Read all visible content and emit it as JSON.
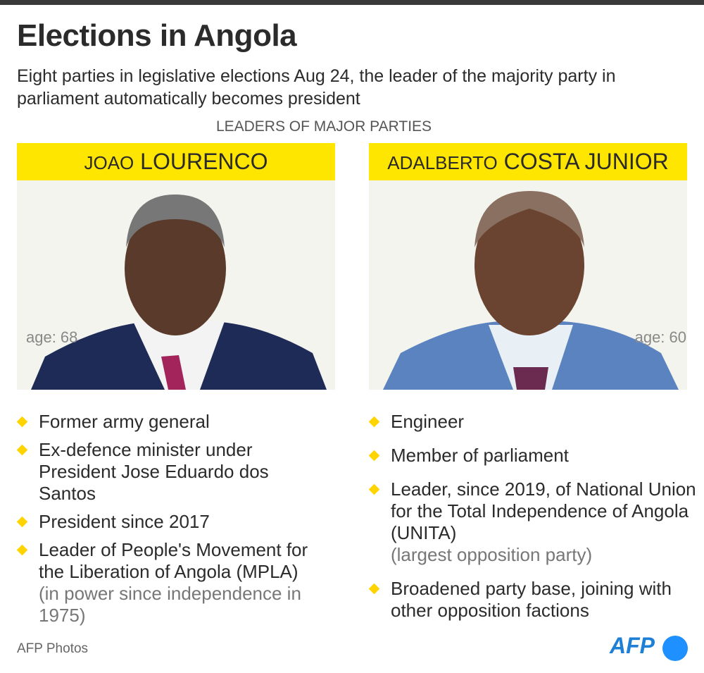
{
  "header": {
    "title": "Elections in Angola",
    "subtitle": "Eight parties in legislative elections Aug 24, the leader of the majority party in parliament automatically becomes president",
    "section_label": "LEADERS OF MAJOR PARTIES"
  },
  "leaders": [
    {
      "first_name": "JOAO",
      "last_name": "LOURENCO",
      "age_label": "age: 68",
      "bullets": [
        {
          "text": "Former army general"
        },
        {
          "text": "Ex-defence minister under President Jose Eduardo dos Santos"
        },
        {
          "text": "President since 2017"
        },
        {
          "text": "Leader of People's Movement for the Liberation of Angola (MPLA)",
          "note": "(in power since independence in 1975)"
        }
      ]
    },
    {
      "first_name": "ADALBERTO",
      "last_name": "COSTA JUNIOR",
      "age_label": "age: 60",
      "bullets": [
        {
          "text": "Engineer"
        },
        {
          "text": "Member of parliament"
        },
        {
          "text": "Leader, since 2019, of National Union for the Total Independence of Angola (UNITA)",
          "note": "(largest opposition party)"
        },
        {
          "text": "Broadened party base, joining with other opposition factions"
        }
      ]
    }
  ],
  "footer": {
    "credit": "AFP Photos",
    "logo": "AFP"
  }
}
